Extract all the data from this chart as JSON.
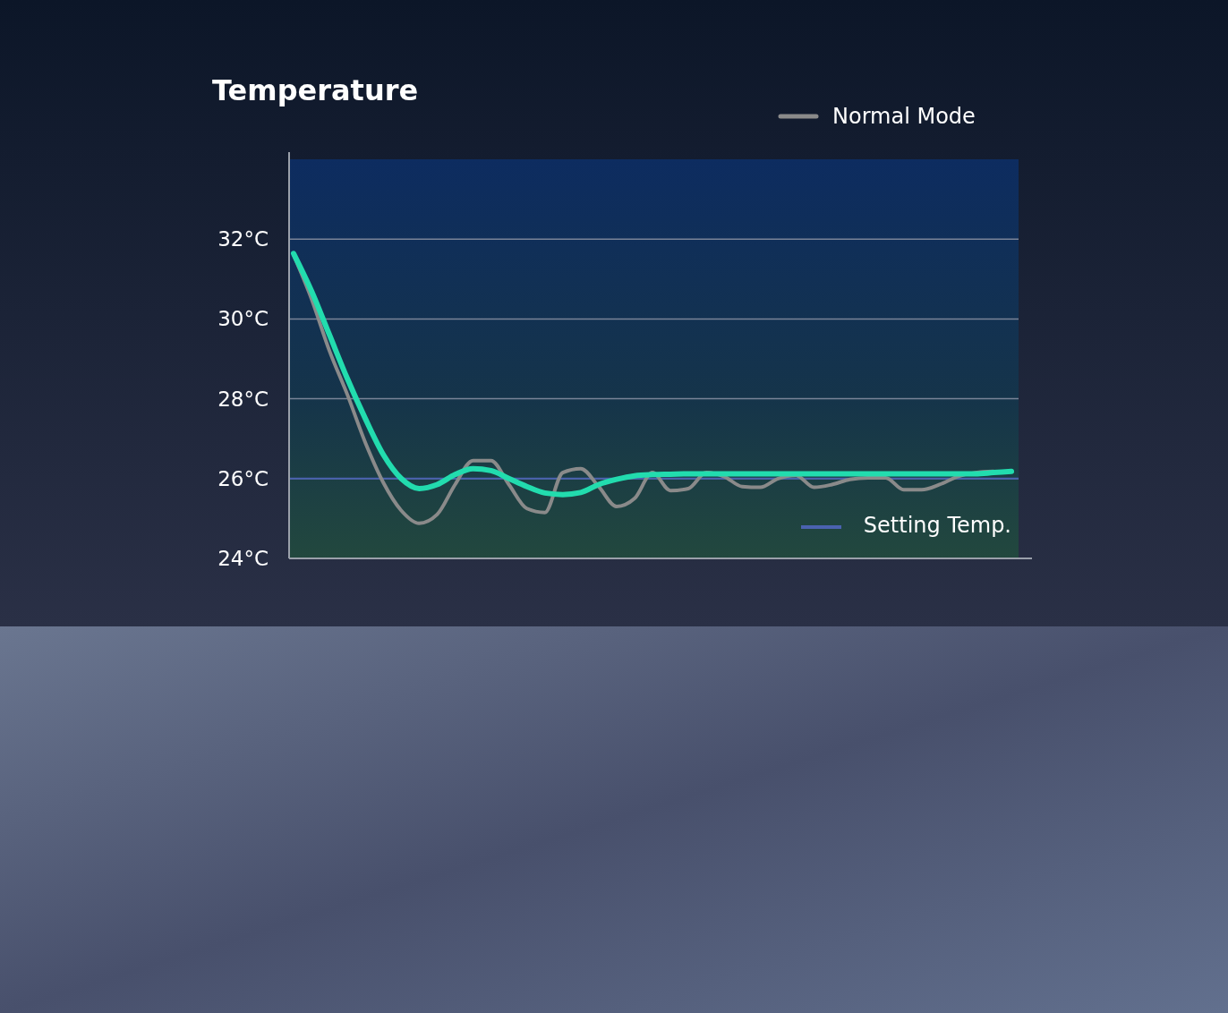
{
  "chart_data": {
    "type": "line",
    "title": "Temperature",
    "categories": [
      null,
      null,
      null,
      null,
      null,
      null,
      null,
      null,
      null,
      null,
      null,
      null,
      null,
      null,
      null,
      null,
      null,
      null,
      null,
      null,
      null,
      null,
      null,
      null,
      null,
      null,
      null,
      null,
      null,
      null,
      null,
      null,
      null,
      null,
      null,
      null,
      null,
      null,
      null,
      null,
      null
    ],
    "series": [
      {
        "color": "#22dcae",
        "values": [
          31.64,
          30.7,
          29.6,
          28.5,
          27.5,
          26.6,
          26.0,
          25.75,
          25.85,
          26.1,
          26.25,
          26.2,
          26.0,
          25.8,
          25.64,
          25.6,
          25.65,
          25.85,
          25.98,
          26.07,
          26.1,
          26.11,
          26.12,
          26.12,
          26.12,
          26.12,
          26.12,
          26.12,
          26.12,
          26.12,
          26.12,
          26.12,
          26.12,
          26.12,
          26.12,
          26.12,
          26.12,
          26.12,
          26.12,
          26.15,
          26.18
        ]
      },
      {
        "name": "Normal Mode",
        "color": "#8a8a8a",
        "values": [
          31.6,
          30.5,
          29.2,
          28.1,
          26.9,
          25.9,
          25.2,
          24.88,
          25.1,
          25.85,
          26.45,
          26.45,
          25.85,
          25.25,
          25.15,
          26.15,
          26.25,
          25.8,
          25.3,
          25.5,
          26.15,
          25.7,
          25.75,
          26.15,
          26.05,
          25.8,
          25.78,
          26.0,
          26.08,
          25.78,
          25.85,
          25.98,
          26.02,
          26.02,
          25.72,
          25.72,
          25.85,
          26.05,
          26.15,
          26.18,
          null
        ]
      }
    ],
    "ylim": [
      24,
      34
    ],
    "yticks": [
      {
        "value": 24,
        "label": "24°C"
      },
      {
        "value": 26,
        "label": "26°C"
      },
      {
        "value": 28,
        "label": "28°C"
      },
      {
        "value": 30,
        "label": "30°C"
      },
      {
        "value": 32,
        "label": "32°C"
      }
    ],
    "grid": "y",
    "legend": "top right",
    "ref_lines": [
      {
        "axis": "y",
        "value": 26,
        "label": "Setting Temp.",
        "color": "#4a62b0"
      }
    ]
  }
}
